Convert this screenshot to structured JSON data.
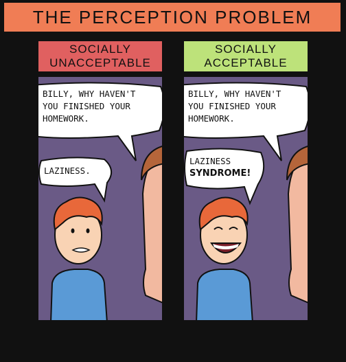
{
  "title": "THE PERCEPTION PROBLEM",
  "panels": [
    {
      "label_line1": "SOCIALLY",
      "label_line2": "UNACCEPTABLE",
      "question_line1": "BILLY, WHY HAVEN'T",
      "question_line2": "YOU FINISHED YOUR",
      "question_line3": "HOMEWORK.",
      "answer_line1": "LAZINESS.",
      "answer_line2": ""
    },
    {
      "label_line1": "SOCIALLY",
      "label_line2": "ACCEPTABLE",
      "question_line1": "BILLY, WHY HAVEN'T",
      "question_line2": "YOU FINISHED YOUR",
      "question_line3": "HOMEWORK.",
      "answer_line1": "LAZINESS",
      "answer_line2": "SYNDROME!"
    }
  ],
  "colors": {
    "banner": "#f07d55",
    "unacceptable": "#e06060",
    "acceptable": "#bde27a",
    "panel_bg": "#6a5a86",
    "hair": "#e8683a",
    "shirt": "#5a9ad6",
    "skin": "#f9d3b4"
  }
}
